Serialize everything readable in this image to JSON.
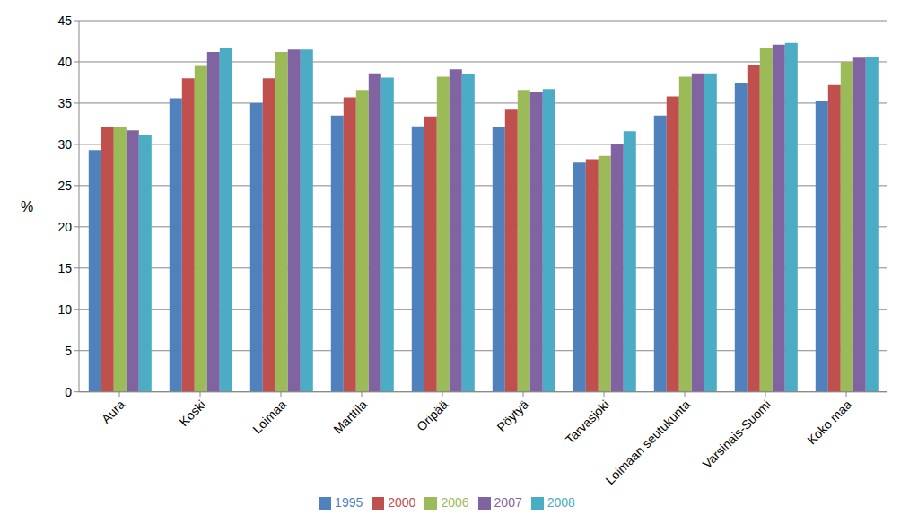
{
  "chart_data": {
    "type": "bar",
    "ylabel": "%",
    "categories": [
      "Aura",
      "Koski",
      "Loimaa",
      "Marttila",
      "Oripää",
      "Pöytyä",
      "Tarvasjoki",
      "Loimaan seutukunta",
      "Varsinais-Suomi",
      "Koko maa"
    ],
    "series": [
      {
        "name": "1995",
        "color": "#4f81bd",
        "values": [
          29.3,
          35.6,
          35.0,
          33.5,
          32.2,
          32.1,
          27.8,
          33.5,
          37.4,
          35.2
        ]
      },
      {
        "name": "2000",
        "color": "#c0504d",
        "values": [
          32.1,
          38.0,
          38.0,
          35.7,
          33.4,
          34.2,
          28.2,
          35.8,
          39.6,
          37.2
        ]
      },
      {
        "name": "2006",
        "color": "#9bbb59",
        "values": [
          32.1,
          39.5,
          41.2,
          36.6,
          38.2,
          36.6,
          28.6,
          38.2,
          41.7,
          40.0
        ]
      },
      {
        "name": "2007",
        "color": "#8064a2",
        "values": [
          31.7,
          41.2,
          41.5,
          38.6,
          39.1,
          36.3,
          30.0,
          38.6,
          42.1,
          40.5
        ]
      },
      {
        "name": "2008",
        "color": "#4bacc6",
        "values": [
          31.1,
          41.7,
          41.5,
          38.1,
          38.5,
          36.7,
          31.6,
          38.6,
          42.3,
          40.6
        ]
      }
    ],
    "ylim": [
      0,
      45
    ],
    "yticks": [
      0,
      5,
      10,
      15,
      20,
      25,
      30,
      35,
      40,
      45
    ],
    "grid": true,
    "legend": "bottom"
  }
}
